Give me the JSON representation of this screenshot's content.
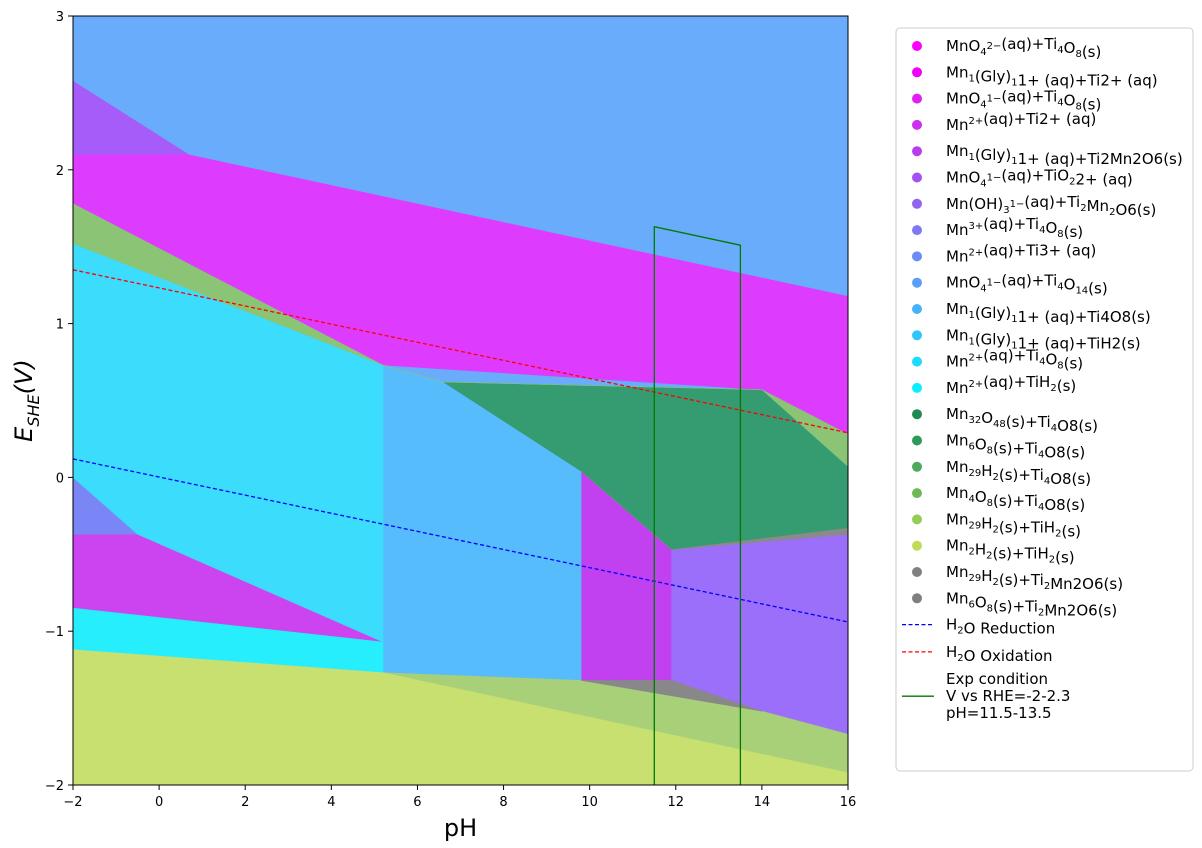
{
  "chart_data": {
    "type": "area",
    "title": "",
    "xlabel": "pH",
    "ylabel": "E_SHE(V)",
    "xlim": [
      -2,
      16
    ],
    "ylim": [
      -2,
      3
    ],
    "xticks": [
      "−2",
      "0",
      "2",
      "4",
      "6",
      "8",
      "10",
      "12",
      "14",
      "16"
    ],
    "yticks": [
      "−2",
      "−1",
      "0",
      "1",
      "2",
      "3"
    ],
    "legend_position": "outside-right",
    "regions": [
      {
        "label": "MnO4 2- (aq)+Ti4O8(s)",
        "color": "#ff00ff",
        "polygon": [
          [
            14.0,
            0.57
          ],
          [
            16,
            0.28
          ],
          [
            16,
            1.18
          ],
          [
            14.0,
            1.46
          ]
        ]
      },
      {
        "label": "Mn1(Gly)1 1+ (aq)+Ti2+(aq)",
        "color": "#dd3cff",
        "polygon": [
          [
            -2,
            1.78
          ],
          [
            -2,
            2.1
          ],
          [
            0.7,
            2.1
          ],
          [
            16,
            1.18
          ],
          [
            16,
            0.28
          ],
          [
            14.0,
            0.57
          ],
          [
            5.2,
            0.73
          ]
        ]
      },
      {
        "label": "Mn2+(aq)+Ti2+(aq)",
        "color": "#cc44f0",
        "polygon": [
          [
            -2,
            -0.37
          ],
          [
            -0.5,
            -0.37
          ],
          [
            5.2,
            -1.07
          ],
          [
            -2,
            -0.85
          ]
        ]
      },
      {
        "label": "Mn1(Gly)1 1+(aq)+Ti2Mn2O6(s)",
        "color": "#c140f0",
        "polygon": [
          [
            9.8,
            0.04
          ],
          [
            11.9,
            -0.47
          ],
          [
            11.9,
            -1.32
          ],
          [
            9.8,
            -1.32
          ]
        ]
      },
      {
        "label": "MnO4 1-(aq)+TiO2 2+(aq)",
        "color": "#a55cf8",
        "polygon": [
          [
            -2,
            1.78
          ],
          [
            -2,
            2.58
          ],
          [
            0.7,
            2.1
          ],
          [
            -2,
            2.1
          ]
        ]
      },
      {
        "label": "Mn(OH)3 1-(aq)+Ti2Mn2O6(s)",
        "color": "#9b6ffa",
        "polygon": [
          [
            11.9,
            -0.47
          ],
          [
            16,
            -0.37
          ],
          [
            16,
            -1.67
          ],
          [
            14.0,
            -1.52
          ],
          [
            11.9,
            -1.32
          ]
        ]
      },
      {
        "label": "Mn3+(aq)+Ti4O8(s)",
        "color": "#8a7cf8",
        "polygon": [
          [
            -2,
            1.52
          ],
          [
            -2,
            1.78
          ],
          [
            -1.4,
            1.52
          ]
        ]
      },
      {
        "label": "Mn2+(aq)+Ti3+(aq)",
        "color": "#7a86f5",
        "polygon": [
          [
            -2,
            0.0
          ],
          [
            -0.5,
            -0.37
          ],
          [
            -2,
            -0.37
          ]
        ]
      },
      {
        "label": "MnO4 1-(aq)+Ti4O14(s)",
        "color": "#6aacfc",
        "polygon": [
          [
            -2,
            2.58
          ],
          [
            -2,
            3
          ],
          [
            16,
            3
          ],
          [
            16,
            1.18
          ],
          [
            0.7,
            2.1
          ]
        ]
      },
      {
        "label": "Mn1(Gly)1 1+(aq)+Ti4O8(s)",
        "color": "#57bcfc",
        "polygon": [
          [
            5.2,
            0.73
          ],
          [
            6.6,
            0.62
          ],
          [
            9.8,
            0.04
          ],
          [
            9.8,
            -1.32
          ],
          [
            5.2,
            -1.27
          ]
        ]
      },
      {
        "label": "Mn1(Gly)1 1+(aq)+TiH2(s)",
        "color": "#3cdcfc",
        "polygon": [
          [
            -2,
            1.52
          ],
          [
            -1.4,
            1.52
          ],
          [
            5.2,
            0.73
          ],
          [
            5.2,
            -1.07
          ],
          [
            -0.5,
            -0.37
          ],
          [
            -2,
            0.0
          ]
        ]
      },
      {
        "label": "Mn2+(aq)+TiH2(s)",
        "color": "#27eefc",
        "polygon": [
          [
            -2,
            -0.85
          ],
          [
            5.2,
            -1.07
          ],
          [
            5.2,
            -1.27
          ],
          [
            -2,
            -1.12
          ]
        ]
      },
      {
        "label": "Mn6O8(s)+Ti4O8(s)",
        "color": "#359b70",
        "polygon": [
          [
            6.6,
            0.62
          ],
          [
            14.0,
            0.57
          ],
          [
            16,
            0.07
          ],
          [
            16,
            -0.33
          ],
          [
            11.9,
            -0.47
          ],
          [
            9.8,
            0.04
          ]
        ]
      },
      {
        "label": "Mn4O8(s)+Ti4O8(s)",
        "color": "#8bc474",
        "polygon": [
          [
            -2,
            1.78
          ],
          [
            5.2,
            0.73
          ],
          [
            6.6,
            0.62
          ],
          [
            14.0,
            0.57
          ],
          [
            16,
            0.28
          ],
          [
            16,
            0.07
          ],
          [
            14.0,
            0.57
          ],
          [
            6.6,
            0.62
          ],
          [
            5.2,
            0.73
          ],
          [
            -2,
            1.52
          ]
        ]
      },
      {
        "label": "Mn29H2(s)+TiH2(s)",
        "color": "#a8d078",
        "polygon": [
          [
            9.8,
            -1.32
          ],
          [
            14.0,
            -1.52
          ],
          [
            16,
            -1.67
          ],
          [
            16,
            -1.92
          ],
          [
            5.2,
            -1.27
          ]
        ]
      },
      {
        "label": "Mn2H2(s)+TiH2(s)",
        "color": "#c8e070",
        "polygon": [
          [
            -2,
            -1.12
          ],
          [
            5.2,
            -1.27
          ],
          [
            16,
            -1.92
          ],
          [
            16,
            -2
          ],
          [
            -2,
            -2
          ]
        ]
      },
      {
        "label": "Mn6O8(s)+Ti2Mn2O6(s)",
        "color": "#8a8a8a",
        "polygon": [
          [
            9.8,
            0.04
          ],
          [
            11.9,
            -0.47
          ],
          [
            16,
            -0.33
          ],
          [
            16,
            -0.37
          ],
          [
            11.9,
            -0.47
          ]
        ]
      },
      {
        "label": "Mn29H2(s)+Ti2Mn2O6(s)",
        "color": "#888888",
        "polygon": [
          [
            9.8,
            -1.32
          ],
          [
            11.9,
            -1.32
          ],
          [
            14.0,
            -1.52
          ],
          [
            9.8,
            -1.32
          ]
        ]
      }
    ],
    "lines": [
      {
        "name": "H2O Reduction",
        "color": "#0000ff",
        "dash": true,
        "x": [
          -2,
          16
        ],
        "y": [
          0.12,
          -0.94
        ]
      },
      {
        "name": "H2O Oxidation",
        "color": "#ff0000",
        "dash": true,
        "x": [
          -2,
          16
        ],
        "y": [
          1.35,
          0.29
        ]
      },
      {
        "name": "Exp condition",
        "color": "#007a00",
        "dash": false,
        "x": [
          11.5,
          11.5,
          13.5,
          13.5
        ],
        "y": [
          -2,
          1.63,
          1.51,
          -2
        ]
      }
    ],
    "legend": {
      "markers": [
        {
          "base": "MnO",
          "sub1": "4",
          "sup1": "2−",
          "rest": "(aq)+Ti",
          "sub2": "4",
          "mid": "O",
          "sub3": "8",
          "tail": "(s)",
          "color": "#ff00ff"
        },
        {
          "base": "Mn",
          "sub1": "1",
          "sup1": "",
          "rest": "(Gly)",
          "sub2": "1",
          "mid": "",
          "sub3": "",
          "tail": "1+ (aq)+Ti2+ (aq)",
          "color": "#f000f8"
        },
        {
          "base": "MnO",
          "sub1": "4",
          "sup1": "1−",
          "rest": "(aq)+Ti",
          "sub2": "4",
          "mid": "O",
          "sub3": "8",
          "tail": "(s)",
          "color": "#e020f0"
        },
        {
          "base": "Mn",
          "sub1": "",
          "sup1": "2+",
          "rest": "(aq)+Ti",
          "sub2": "",
          "mid": "",
          "sub3": "",
          "tail": "2+ (aq)",
          "color": "#cc2ff0"
        },
        {
          "base": "Mn",
          "sub1": "1",
          "sup1": "",
          "rest": "(Gly)",
          "sub2": "1",
          "mid": "",
          "sub3": "",
          "tail": "1+ (aq)+Ti2Mn2O6(s)",
          "color": "#b83cf0"
        },
        {
          "base": "MnO",
          "sub1": "4",
          "sup1": "1−",
          "rest": "(aq)+TiO",
          "sub2": "2",
          "mid": "",
          "sub3": "",
          "tail": "2+ (aq)",
          "color": "#a650f0"
        },
        {
          "base": "Mn(OH)",
          "sub1": "3",
          "sup1": "1−",
          "rest": "(aq)+Ti",
          "sub2": "2",
          "mid": "Mn",
          "sub3": "2",
          "tail": "O6(s)",
          "color": "#9364f2"
        },
        {
          "base": "Mn",
          "sub1": "",
          "sup1": "3+",
          "rest": "(aq)+Ti",
          "sub2": "4",
          "mid": "O",
          "sub3": "8",
          "tail": "(s)",
          "color": "#7f78f4"
        },
        {
          "base": "Mn",
          "sub1": "",
          "sup1": "2+",
          "rest": "(aq)+Ti",
          "sub2": "",
          "mid": "",
          "sub3": "",
          "tail": "3+ (aq)",
          "color": "#6c8cf6"
        },
        {
          "base": "MnO",
          "sub1": "4",
          "sup1": "1−",
          "rest": "(aq)+Ti",
          "sub2": "4",
          "mid": "O",
          "sub3": "14",
          "tail": "(s)",
          "color": "#589ff8"
        },
        {
          "base": "Mn",
          "sub1": "1",
          "sup1": "",
          "rest": "(Gly)",
          "sub2": "1",
          "mid": "",
          "sub3": "",
          "tail": "1+ (aq)+Ti4O8(s)",
          "color": "#45b3fa"
        },
        {
          "base": "Mn",
          "sub1": "1",
          "sup1": "",
          "rest": "(Gly)",
          "sub2": "1",
          "mid": "",
          "sub3": "",
          "tail": "1+ (aq)+TiH2(s)",
          "color": "#31c6fb"
        },
        {
          "base": "Mn",
          "sub1": "",
          "sup1": "2+",
          "rest": "(aq)+Ti",
          "sub2": "4",
          "mid": "O",
          "sub3": "8",
          "tail": "(s)",
          "color": "#1edafd"
        },
        {
          "base": "Mn",
          "sub1": "",
          "sup1": "2+",
          "rest": "(aq)+TiH",
          "sub2": "2",
          "mid": "",
          "sub3": "",
          "tail": "(s)",
          "color": "#0aeeff"
        },
        {
          "base": "Mn",
          "sub1": "32",
          "sup1": "",
          "rest": "O",
          "sub2": "48",
          "mid": "(s)+Ti",
          "sub3": "4",
          "tail": "O8(s)",
          "color": "#1e8a52"
        },
        {
          "base": "Mn",
          "sub1": "6",
          "sup1": "",
          "rest": "O",
          "sub2": "8",
          "mid": "(s)+Ti",
          "sub3": "4",
          "tail": "O8(s)",
          "color": "#2e9a5a"
        },
        {
          "base": "Mn",
          "sub1": "29",
          "sup1": "",
          "rest": "H",
          "sub2": "2",
          "mid": "(s)+Ti",
          "sub3": "4",
          "tail": "O8(s)",
          "color": "#4fa85c"
        },
        {
          "base": "Mn",
          "sub1": "4",
          "sup1": "",
          "rest": "O",
          "sub2": "8",
          "mid": "(s)+Ti",
          "sub3": "4",
          "tail": "O8(s)",
          "color": "#6fb858"
        },
        {
          "base": "Mn",
          "sub1": "29",
          "sup1": "",
          "rest": "H",
          "sub2": "2",
          "mid": "(s)+TiH",
          "sub3": "2",
          "tail": "(s)",
          "color": "#95cc58"
        },
        {
          "base": "Mn",
          "sub1": "2",
          "sup1": "",
          "rest": "H",
          "sub2": "2",
          "mid": "(s)+TiH",
          "sub3": "2",
          "tail": "(s)",
          "color": "#bfdc58"
        },
        {
          "base": "Mn",
          "sub1": "29",
          "sup1": "",
          "rest": "H",
          "sub2": "2",
          "mid": "(s)+Ti",
          "sub3": "2",
          "tail": "Mn2O6(s)",
          "color": "#808080"
        },
        {
          "base": "Mn",
          "sub1": "6",
          "sup1": "",
          "rest": "O",
          "sub2": "8",
          "mid": "(s)+Ti",
          "sub3": "2",
          "tail": "Mn2O6(s)",
          "color": "#7f7f7f"
        }
      ],
      "lines": [
        {
          "text": "H",
          "sub": "2",
          "rest": "O Reduction",
          "color": "#0000ff",
          "dash": true
        },
        {
          "text": "H",
          "sub": "2",
          "rest": "O Oxidation",
          "color": "#ff0000",
          "dash": true
        },
        {
          "text": "Exp condition",
          "sub": "",
          "rest": "",
          "line2": "V vs RHE=-2-2.3",
          "line3": "pH=11.5-13.5",
          "color": "#007a00",
          "dash": false
        }
      ]
    }
  }
}
